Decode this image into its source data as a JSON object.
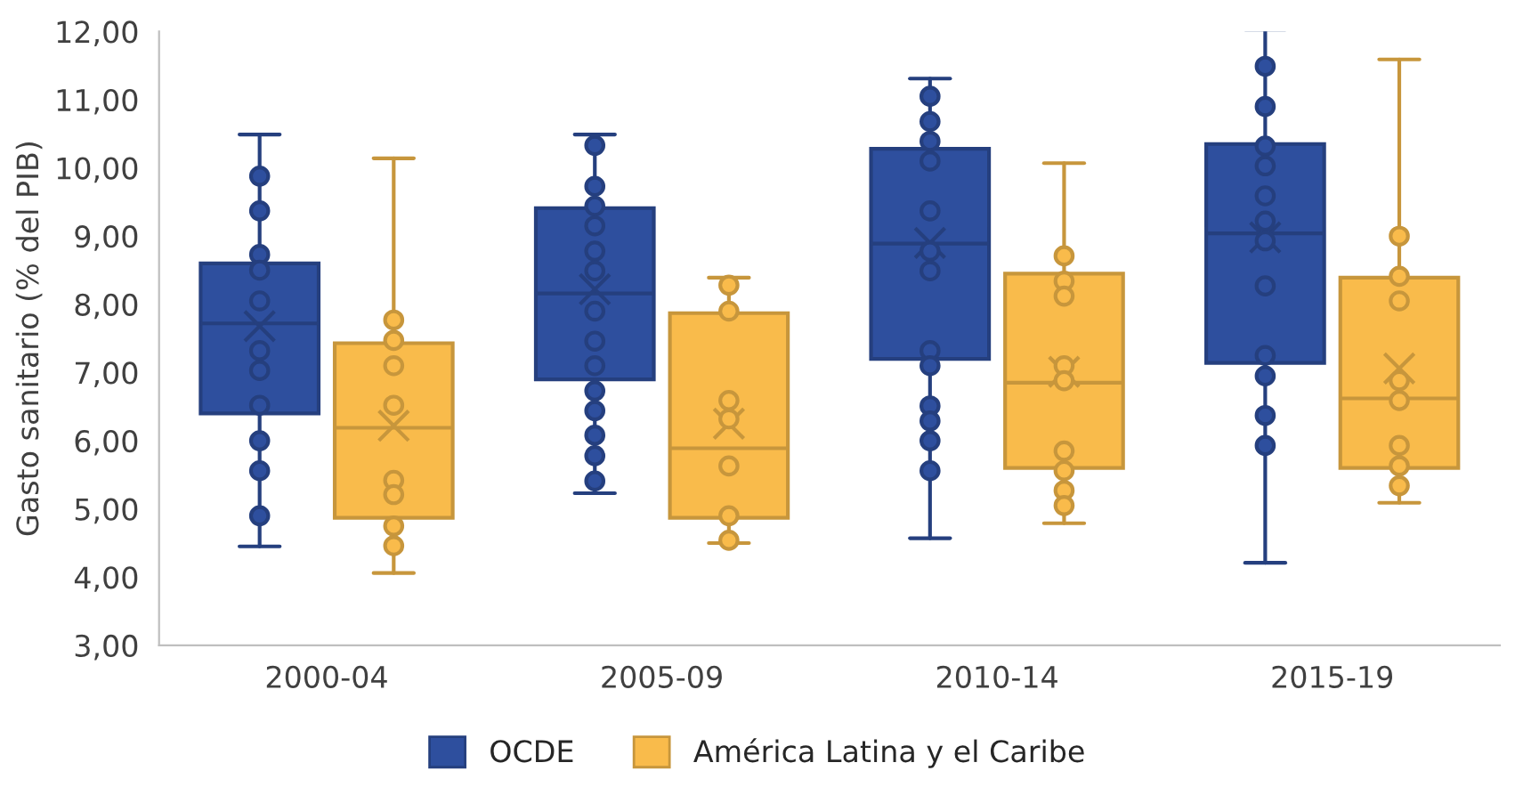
{
  "chart_data": {
    "type": "box",
    "ylabel": "Gasto sanitario (% del PIB)",
    "categories": [
      "2000-04",
      "2005-09",
      "2010-14",
      "2015-19"
    ],
    "ylim": [
      3,
      12
    ],
    "yticks": [
      {
        "value": 3,
        "label": "3,00"
      },
      {
        "value": 4,
        "label": "4,00"
      },
      {
        "value": 5,
        "label": "5,00"
      },
      {
        "value": 6,
        "label": "6,00"
      },
      {
        "value": 7,
        "label": "7,00"
      },
      {
        "value": 8,
        "label": "8,00"
      },
      {
        "value": 9,
        "label": "9,00"
      },
      {
        "value": 10,
        "label": "10,00"
      },
      {
        "value": 11,
        "label": "11,00"
      },
      {
        "value": 12,
        "label": "12,00"
      }
    ],
    "grid": false,
    "legend": "bottom",
    "series": [
      {
        "name": "OCDE",
        "color": "#2e4f9e",
        "boxes": [
          {
            "low": 4.45,
            "q1": 6.4,
            "median": 7.72,
            "q3": 8.6,
            "high": 10.49,
            "mean": 7.68,
            "outliers": [
              9.88,
              9.37,
              8.73,
              8.5,
              8.05,
              7.32,
              7.03,
              6.52,
              6.0,
              5.56,
              4.9
            ]
          },
          {
            "low": 5.23,
            "q1": 6.9,
            "median": 8.16,
            "q3": 9.41,
            "high": 10.49,
            "mean": 8.22,
            "outliers": [
              10.33,
              9.73,
              9.44,
              9.15,
              8.78,
              8.49,
              7.9,
              7.46,
              7.1,
              6.73,
              6.44,
              6.08,
              5.78,
              5.41
            ]
          },
          {
            "low": 4.57,
            "q1": 7.2,
            "median": 8.89,
            "q3": 10.28,
            "high": 11.31,
            "mean": 8.9,
            "outliers": [
              11.05,
              10.68,
              10.39,
              10.1,
              9.37,
              8.78,
              8.49,
              7.32,
              7.1,
              6.51,
              6.29,
              6.0,
              5.56
            ]
          },
          {
            "low": 4.21,
            "q1": 7.14,
            "median": 9.04,
            "q3": 10.35,
            "high": 12.03,
            "mean": 8.98,
            "outliers": [
              11.49,
              10.9,
              10.32,
              10.03,
              9.59,
              9.22,
              8.93,
              8.27,
              7.25,
              6.95,
              6.37,
              5.93
            ]
          }
        ]
      },
      {
        "name": "América Latina y el Caribe",
        "color": "#f9bb4b",
        "boxes": [
          {
            "low": 4.06,
            "q1": 4.87,
            "median": 6.19,
            "q3": 7.43,
            "high": 10.14,
            "mean": 6.22,
            "outliers": [
              7.77,
              7.47,
              7.1,
              6.52,
              5.42,
              5.21,
              4.75,
              4.46
            ]
          },
          {
            "low": 4.5,
            "q1": 4.87,
            "median": 5.89,
            "q3": 7.87,
            "high": 8.39,
            "mean": 6.25,
            "outliers": [
              8.28,
              7.9,
              6.59,
              6.32,
              5.63,
              4.9,
              4.54
            ]
          },
          {
            "low": 4.79,
            "q1": 5.6,
            "median": 6.85,
            "q3": 8.45,
            "high": 10.07,
            "mean": 7.01,
            "outliers": [
              8.71,
              8.34,
              8.12,
              7.1,
              6.88,
              5.85,
              5.56,
              5.27,
              5.05
            ]
          },
          {
            "low": 5.09,
            "q1": 5.6,
            "median": 6.62,
            "q3": 8.39,
            "high": 11.59,
            "mean": 7.06,
            "outliers": [
              9.0,
              8.41,
              8.05,
              6.88,
              6.59,
              5.93,
              5.63,
              5.34
            ]
          }
        ]
      }
    ]
  }
}
